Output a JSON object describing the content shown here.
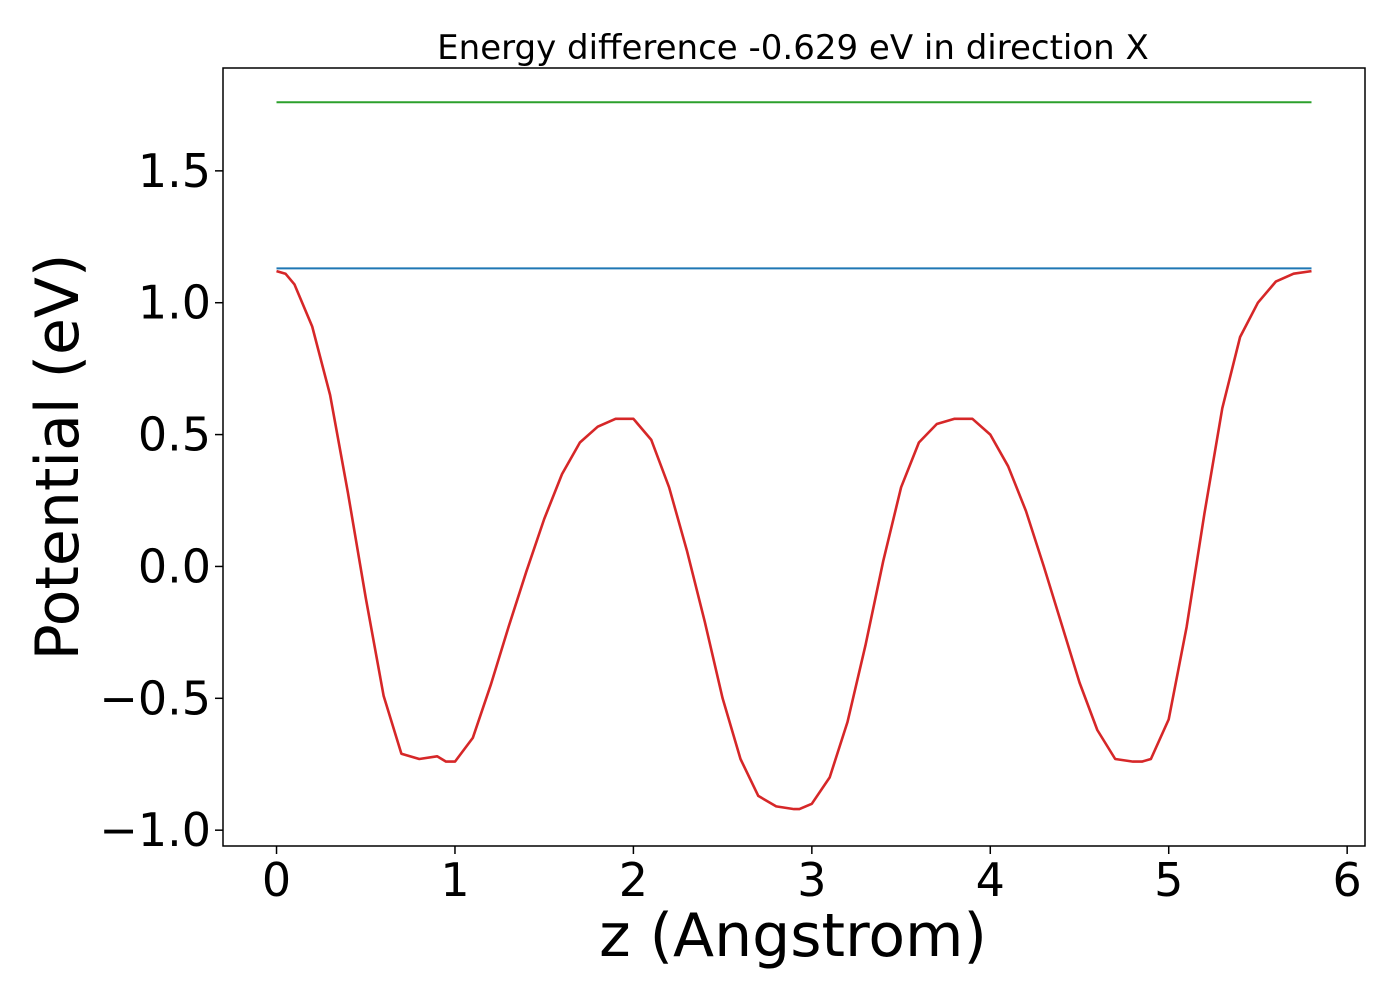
{
  "chart_data": {
    "type": "line",
    "title": "Energy difference -0.629 eV in direction X",
    "xlabel": "z (Angstrom)",
    "ylabel": "Potential (eV)",
    "xlim": [
      -0.3,
      6.1
    ],
    "ylim": [
      -1.06,
      1.89
    ],
    "x_ticks": [
      0,
      1,
      2,
      3,
      4,
      5,
      6
    ],
    "x_tick_labels": [
      "0",
      "1",
      "2",
      "3",
      "4",
      "5",
      "6"
    ],
    "y_ticks": [
      -1.0,
      -0.5,
      0.0,
      0.5,
      1.0,
      1.5
    ],
    "y_tick_labels": [
      "−1.0",
      "−0.5",
      "0.0",
      "0.5",
      "1.0",
      "1.5"
    ],
    "grid": false,
    "series": [
      {
        "color": "#2ca02c",
        "x": [
          0,
          5.8
        ],
        "y": [
          1.76,
          1.76
        ]
      },
      {
        "color": "#1f77b4",
        "x": [
          0,
          5.8
        ],
        "y": [
          1.13,
          1.13
        ]
      },
      {
        "color": "#d62728",
        "x": [
          0.0,
          0.05,
          0.1,
          0.2,
          0.3,
          0.4,
          0.5,
          0.6,
          0.7,
          0.8,
          0.9,
          0.95,
          1.0,
          1.1,
          1.2,
          1.3,
          1.4,
          1.5,
          1.6,
          1.7,
          1.8,
          1.9,
          1.95,
          2.0,
          2.1,
          2.2,
          2.3,
          2.4,
          2.5,
          2.6,
          2.7,
          2.8,
          2.9,
          2.93,
          3.0,
          3.1,
          3.2,
          3.3,
          3.4,
          3.5,
          3.6,
          3.7,
          3.8,
          3.85,
          3.9,
          4.0,
          4.1,
          4.2,
          4.3,
          4.4,
          4.5,
          4.6,
          4.7,
          4.8,
          4.85,
          4.9,
          5.0,
          5.1,
          5.2,
          5.3,
          5.4,
          5.5,
          5.6,
          5.7,
          5.8
        ],
        "y": [
          1.12,
          1.11,
          1.07,
          0.91,
          0.65,
          0.28,
          -0.12,
          -0.49,
          -0.71,
          -0.73,
          -0.72,
          -0.74,
          -0.74,
          -0.65,
          -0.45,
          -0.23,
          -0.02,
          0.18,
          0.35,
          0.47,
          0.53,
          0.56,
          0.56,
          0.56,
          0.48,
          0.3,
          0.06,
          -0.21,
          -0.5,
          -0.73,
          -0.87,
          -0.91,
          -0.92,
          -0.92,
          -0.9,
          -0.8,
          -0.59,
          -0.3,
          0.02,
          0.3,
          0.47,
          0.54,
          0.56,
          0.56,
          0.56,
          0.5,
          0.38,
          0.21,
          0.0,
          -0.22,
          -0.44,
          -0.62,
          -0.73,
          -0.74,
          -0.74,
          -0.73,
          -0.58,
          -0.23,
          0.2,
          0.6,
          0.87,
          1.0,
          1.08,
          1.11,
          1.12
        ]
      }
    ]
  }
}
